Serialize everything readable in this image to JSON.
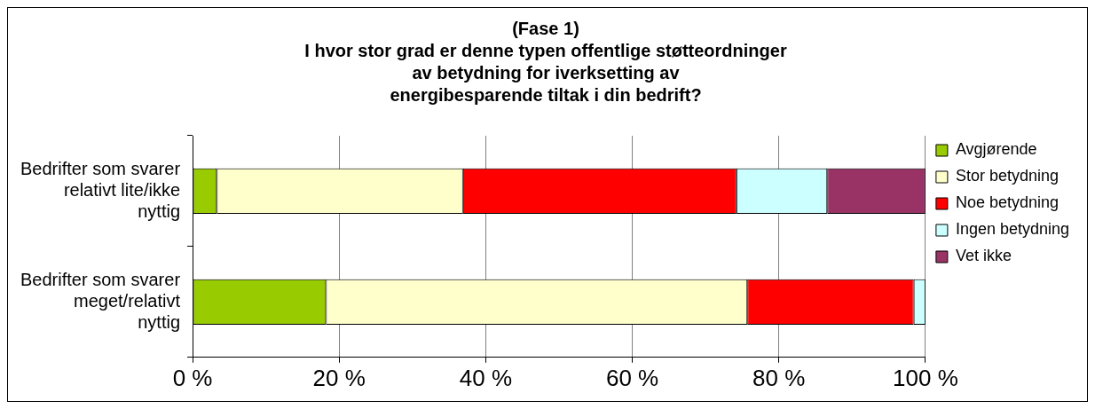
{
  "chart_data": {
    "type": "bar",
    "orientation": "horizontal",
    "stacked": true,
    "title": "(Fase 1)\nI hvor stor grad er denne typen offentlige støtteordninger\nav betydning for iverksetting av\nenergibesparende tiltak i din bedrift?",
    "categories": [
      "Bedrifter som svarer relativt lite/ikke nyttig",
      "Bedrifter som svarer meget/relativt nyttig"
    ],
    "series": [
      {
        "name": "Avgjørende",
        "color": "#99cc00",
        "values": [
          3.3,
          18.2
        ]
      },
      {
        "name": "Stor betydning",
        "color": "#ffffcc",
        "values": [
          33.6,
          57.5
        ]
      },
      {
        "name": "Noe betydning",
        "color": "#ff0000",
        "values": [
          37.3,
          22.7
        ]
      },
      {
        "name": "Ingen betydning",
        "color": "#ccffff",
        "values": [
          12.4,
          1.6
        ]
      },
      {
        "name": "Vet ikke",
        "color": "#993366",
        "values": [
          13.4,
          0
        ]
      }
    ],
    "xlim": [
      0,
      100
    ],
    "xticks": [
      {
        "value": 0,
        "label": "0 %"
      },
      {
        "value": 20,
        "label": "20 %"
      },
      {
        "value": 40,
        "label": "40 %"
      },
      {
        "value": 60,
        "label": "60 %"
      },
      {
        "value": 80,
        "label": "80 %"
      },
      {
        "value": 100,
        "label": "100 %"
      }
    ],
    "grid": "x",
    "legend": "right"
  }
}
